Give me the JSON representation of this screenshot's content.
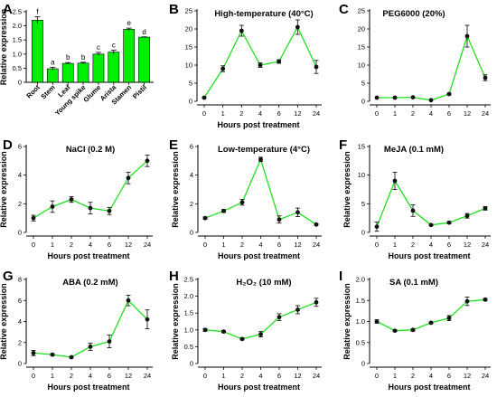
{
  "accent": "#1fe01f",
  "bar_color": "#00ee00",
  "chart_data": [
    {
      "id": "A",
      "letter": "A",
      "type": "bar",
      "title": "",
      "categories": [
        "Root",
        "Stem",
        "Leaf",
        "Young spike",
        "Glume",
        "Arista",
        "Stamen",
        "Pistil"
      ],
      "values": [
        2.2,
        0.48,
        0.67,
        0.68,
        1.0,
        1.07,
        1.88,
        1.6
      ],
      "errors": [
        0.12,
        0.05,
        0.03,
        0.03,
        0.06,
        0.07,
        0.04,
        0.01
      ],
      "significance": [
        "f",
        "a",
        "b",
        "b",
        "c",
        "c",
        "e",
        "d"
      ],
      "ylabel": "Relative expression",
      "xlabel": "",
      "ylim": [
        0,
        2.5
      ],
      "yticks": [
        0,
        0.5,
        1.0,
        1.5,
        2.0,
        2.5
      ],
      "ytick_labels": [
        "0",
        "0.5",
        "1.0",
        "1.5",
        "2.0",
        "2.5"
      ]
    },
    {
      "id": "B",
      "letter": "B",
      "type": "line",
      "title": "High-temperature (40°C)",
      "categories": [
        "0",
        "1",
        "2",
        "4",
        "6",
        "12",
        "24"
      ],
      "values": [
        1.0,
        9.0,
        19.5,
        10.0,
        11.0,
        20.5,
        9.5
      ],
      "errors": [
        0.2,
        0.8,
        1.5,
        0.6,
        0.5,
        2.0,
        1.8
      ],
      "ylabel": "",
      "xlabel": "Hours post treatment",
      "ylim": [
        0,
        25
      ],
      "yticks": [
        0,
        5,
        10,
        15,
        20,
        25
      ],
      "ytick_labels": [
        "0",
        "5",
        "10",
        "15",
        "20",
        "25"
      ]
    },
    {
      "id": "C",
      "letter": "C",
      "type": "line",
      "title": "PEG6000 (20%)",
      "categories": [
        "0",
        "1",
        "2",
        "4",
        "6",
        "12",
        "24"
      ],
      "values": [
        1.0,
        1.0,
        1.1,
        0.3,
        2.0,
        18.0,
        6.5
      ],
      "errors": [
        0.1,
        0.1,
        0.1,
        0.05,
        0.2,
        3.0,
        0.8
      ],
      "ylabel": "",
      "xlabel": "",
      "ylim": [
        0,
        25
      ],
      "yticks": [
        0,
        5,
        10,
        15,
        20,
        25
      ],
      "ytick_labels": [
        "0",
        "5",
        "10",
        "15",
        "20",
        "25"
      ]
    },
    {
      "id": "D",
      "letter": "D",
      "type": "line",
      "title": "NaCl (0.2 M)",
      "categories": [
        "0",
        "1",
        "2",
        "4",
        "6",
        "12",
        "24"
      ],
      "values": [
        1.0,
        1.8,
        2.3,
        1.7,
        1.5,
        3.8,
        5.0
      ],
      "errors": [
        0.2,
        0.4,
        0.2,
        0.4,
        0.25,
        0.4,
        0.4
      ],
      "ylabel": "Relative expression",
      "xlabel": "Hours post treatment",
      "ylim": [
        0,
        6
      ],
      "yticks": [
        0,
        2,
        4,
        6
      ],
      "ytick_labels": [
        "0",
        "2",
        "4",
        "6"
      ]
    },
    {
      "id": "E",
      "letter": "E",
      "type": "line",
      "title": "Low-temperature (4°C)",
      "categories": [
        "0",
        "1",
        "2",
        "4",
        "6",
        "12",
        "24"
      ],
      "values": [
        1.0,
        1.5,
        2.1,
        5.1,
        0.9,
        1.4,
        0.55
      ],
      "errors": [
        0.08,
        0.1,
        0.2,
        0.15,
        0.25,
        0.3,
        0.05
      ],
      "ylabel": "Relative expression",
      "xlabel": "Hours post treatment",
      "ylim": [
        0,
        6
      ],
      "yticks": [
        0,
        2,
        4,
        6
      ],
      "ytick_labels": [
        "0",
        "2",
        "4",
        "6"
      ]
    },
    {
      "id": "F",
      "letter": "F",
      "type": "line",
      "title": "MeJA (0.1 mM)",
      "categories": [
        "0",
        "1",
        "2",
        "4",
        "6",
        "12",
        "24"
      ],
      "values": [
        1.0,
        9.0,
        3.8,
        1.3,
        1.7,
        2.9,
        4.2
      ],
      "errors": [
        0.8,
        1.5,
        1.0,
        0.15,
        0.2,
        0.4,
        0.3
      ],
      "ylabel": "Relative expression",
      "xlabel": "Hours post treatment",
      "ylim": [
        0,
        15
      ],
      "yticks": [
        0,
        5,
        10,
        15
      ],
      "ytick_labels": [
        "0",
        "5",
        "10",
        "15"
      ]
    },
    {
      "id": "G",
      "letter": "G",
      "type": "line",
      "title": "ABA (0.2 mM)",
      "categories": [
        "0",
        "1",
        "2",
        "4",
        "6",
        "12",
        "24"
      ],
      "values": [
        1.0,
        0.85,
        0.6,
        1.6,
        2.1,
        6.0,
        4.2
      ],
      "errors": [
        0.25,
        0.08,
        0.08,
        0.35,
        0.6,
        0.5,
        0.9
      ],
      "ylabel": "Relative expression",
      "xlabel": "Hours post treatment",
      "ylim": [
        0,
        8
      ],
      "yticks": [
        0,
        2,
        4,
        6,
        8
      ],
      "ytick_labels": [
        "0",
        "2",
        "4",
        "6",
        "8"
      ]
    },
    {
      "id": "H",
      "letter": "H",
      "type": "line",
      "title": "H₂O₂ (10 mM)",
      "categories": [
        "0",
        "1",
        "2",
        "4",
        "6",
        "12",
        "24"
      ],
      "values": [
        1.0,
        0.95,
        0.73,
        0.87,
        1.38,
        1.6,
        1.82
      ],
      "errors": [
        0.04,
        0.03,
        0.03,
        0.08,
        0.1,
        0.12,
        0.12
      ],
      "ylabel": "Relative expression",
      "xlabel": "Hours post treatment",
      "ylim": [
        0,
        2.5
      ],
      "yticks": [
        0,
        0.5,
        1.0,
        1.5,
        2.0,
        2.5
      ],
      "ytick_labels": [
        "0",
        "0.5",
        "1.0",
        "1.5",
        "2.0",
        "2.5"
      ]
    },
    {
      "id": "I",
      "letter": "I",
      "type": "line",
      "title": "SA (0.1 mM)",
      "categories": [
        "0",
        "1",
        "2",
        "4",
        "6",
        "12",
        "24"
      ],
      "values": [
        1.0,
        0.78,
        0.8,
        0.97,
        1.08,
        1.48,
        1.52
      ],
      "errors": [
        0.04,
        0.02,
        0.03,
        0.02,
        0.06,
        0.1,
        0.03
      ],
      "ylabel": "Relative expression",
      "xlabel": "Hours post treatment",
      "ylim": [
        0,
        2.0
      ],
      "yticks": [
        0,
        0.5,
        1.0,
        1.5,
        2.0
      ],
      "ytick_labels": [
        "0",
        "0.5",
        "1.0",
        "1.5",
        "2.0"
      ]
    }
  ]
}
